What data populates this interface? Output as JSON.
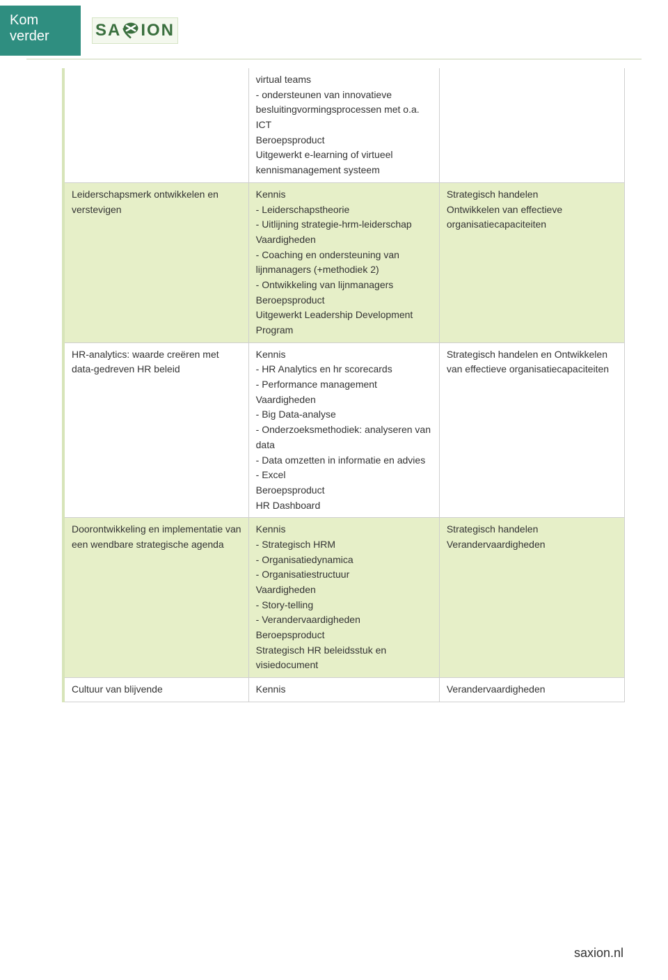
{
  "colors": {
    "header_block_bg": "#2f8e80",
    "header_block_text": "#ffffff",
    "logo_border": "#d5e4c4",
    "logo_bg": "#f4f8ee",
    "logo_text": "#3a6f3e",
    "divider": "#e2e8d6",
    "cell_border": "#cfcfcf",
    "left_accent": "#d7e4b9",
    "green_row_bg": "#e6efc8",
    "body_text": "#333333",
    "page_bg": "#ffffff"
  },
  "header": {
    "kom": "Kom",
    "verder": "verder",
    "saxion": "SAXION"
  },
  "table": {
    "columns_ratio": [
      33,
      34,
      33
    ],
    "rows": [
      {
        "continuation": true,
        "col1": "",
        "col2": "virtual teams\n- ondersteunen van innovatieve besluitingvormingsprocessen met o.a. ICT\nBeroepsproduct\nUitgewerkt e-learning of virtueel kennismanagement systeem",
        "col3": ""
      },
      {
        "green": true,
        "col1": "Leiderschapsmerk ontwikkelen en verstevigen",
        "col2": "Kennis\n- Leiderschapstheorie\n- Uitlijning strategie-hrm-leiderschap\nVaardigheden\n- Coaching en ondersteuning van lijnmanagers (+methodiek 2)\n- Ontwikkeling van lijnmanagers\nBeroepsproduct\nUitgewerkt Leadership Development Program",
        "col3": "Strategisch handelen\nOntwikkelen van effectieve organisatiecapaciteiten"
      },
      {
        "col1": "HR-analytics: waarde creëren met data-gedreven HR beleid",
        "col2": "Kennis\n- HR Analytics en hr scorecards\n- Performance management\nVaardigheden\n- Big Data-analyse\n- Onderzoeksmethodiek: analyseren van data\n- Data omzetten in informatie en advies\n- Excel\nBeroepsproduct\nHR Dashboard",
        "col3": "Strategisch handelen en Ontwikkelen van effectieve organisatiecapaciteiten"
      },
      {
        "green": true,
        "col1": "Doorontwikkeling en implementatie van een wendbare strategische agenda",
        "col2": "Kennis\n- Strategisch HRM\n- Organisatiedynamica\n- Organisatiestructuur\nVaardigheden\n- Story-telling\n- Verandervaardigheden\nBeroepsproduct\nStrategisch HR beleidsstuk en visiedocument",
        "col3": "Strategisch handelen\nVerandervaardigheden"
      },
      {
        "col1": "Cultuur van blijvende",
        "col2": "Kennis",
        "col3": "Verandervaardigheden"
      }
    ]
  },
  "footer": {
    "url": "saxion.nl"
  }
}
